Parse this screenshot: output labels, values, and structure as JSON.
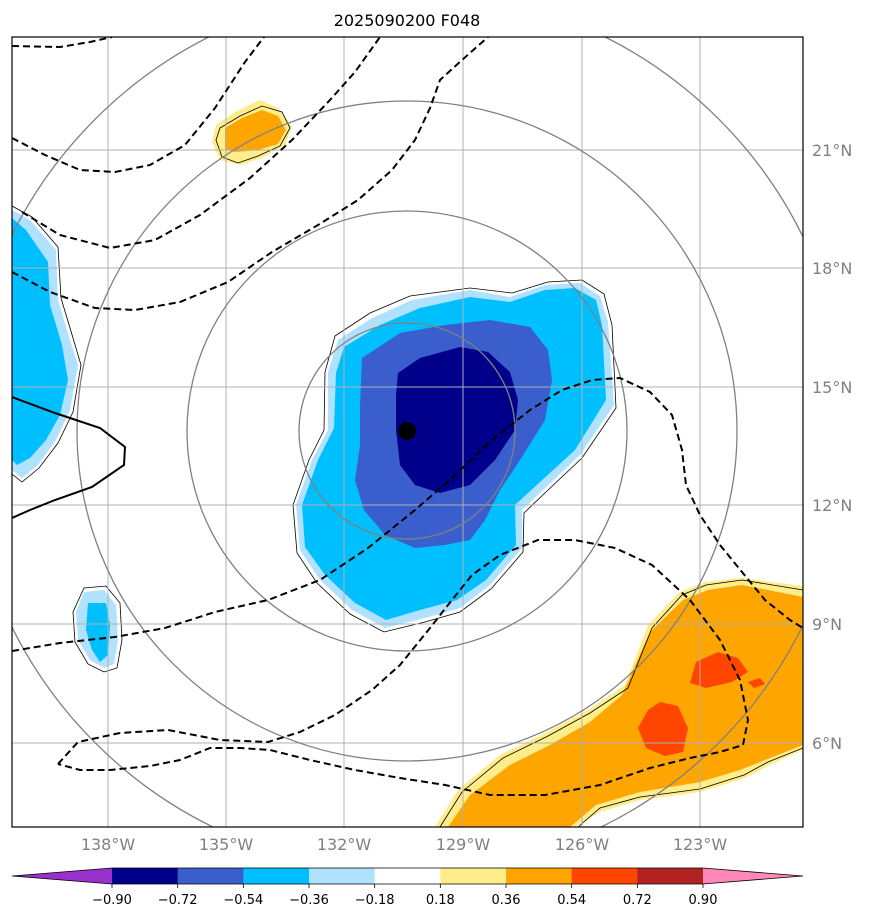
{
  "chart_data": {
    "type": "heatmap",
    "title": "2025090200 F048",
    "map": {
      "lon_range_deg_w": [
        140.2,
        119.8
      ],
      "lat_range_deg_n": [
        3.6,
        23.6
      ],
      "grid_lons_deg_w": [
        138,
        135,
        132,
        129,
        126,
        123
      ],
      "grid_lats_deg_n": [
        6,
        9,
        12,
        15,
        18,
        21
      ],
      "lon_tick_labels": [
        "138°W",
        "135°W",
        "132°W",
        "129°W",
        "126°W",
        "123°W"
      ],
      "lat_tick_labels": [
        "6°N",
        "9°N",
        "12°N",
        "15°N",
        "18°N",
        "21°N"
      ],
      "grid": true,
      "storm_center": {
        "lon_deg_w": 130.0,
        "lat_deg_n": 13.9
      },
      "range_rings": 4
    },
    "colorbar": {
      "orientation": "horizontal",
      "extend": "both",
      "levels": [
        -0.9,
        -0.72,
        -0.54,
        -0.36,
        -0.18,
        0.18,
        0.36,
        0.54,
        0.72,
        0.9
      ],
      "tick_labels": [
        "−0.90",
        "−0.72",
        "−0.54",
        "−0.36",
        "−0.18",
        "0.18",
        "0.36",
        "0.54",
        "0.72",
        "0.90"
      ],
      "colors": [
        "#9932cc",
        "#00008b",
        "#3a5fcd",
        "#00bfff",
        "#b0e2ff",
        "#ffffff",
        "#ffec8b",
        "#ffa500",
        "#ff4500",
        "#b22222",
        "#ff88b8"
      ]
    }
  }
}
